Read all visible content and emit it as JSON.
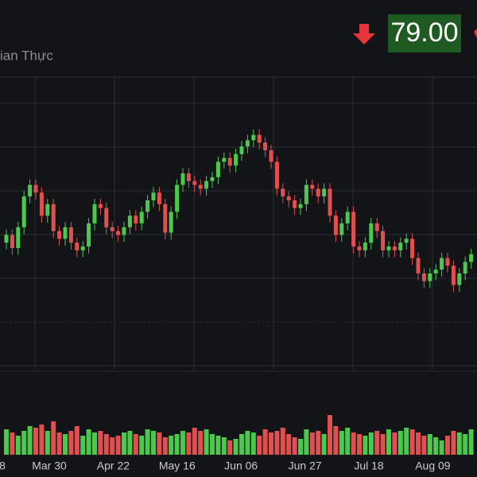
{
  "chart_data": {
    "type": "candlestick",
    "price_label": "79.00",
    "subtitle": "ian Thực",
    "x_labels": [
      "8",
      "Mar 30",
      "Apr 22",
      "May 16",
      "Jun 06",
      "Jun 27",
      "Jul 18",
      "Aug 09"
    ],
    "open": [
      80.5,
      81.5,
      79.8,
      82.5,
      86.5,
      88.0,
      87.0,
      84.0,
      85.5,
      82.0,
      81.0,
      82.5,
      80.5,
      79.5,
      80.0,
      83.0,
      85.5,
      85.0,
      82.5,
      82.0,
      81.5,
      82.5,
      84.0,
      83.0,
      84.5,
      86.0,
      87.0,
      85.5,
      81.8,
      84.5,
      88.0,
      89.5,
      88.5,
      88.0,
      87.5,
      88.5,
      89.0,
      91.0,
      91.5,
      90.5,
      92.0,
      93.0,
      93.8,
      94.5,
      93.5,
      92.5,
      91.0,
      87.5,
      86.5,
      86.0,
      85.0,
      85.5,
      88.0,
      87.5,
      86.5,
      87.5,
      84.0,
      81.5,
      83.0,
      84.5,
      80.0,
      79.5,
      80.5,
      83.0,
      82.0,
      79.5,
      80.0,
      79.5,
      80.5,
      81.0,
      78.5,
      76.5,
      75.5,
      76.5,
      77.0,
      78.5,
      77.5,
      75.0,
      76.5,
      78.0
    ],
    "high": [
      82.2,
      82.2,
      83.2,
      87.2,
      88.7,
      88.7,
      87.7,
      86.2,
      86.2,
      82.7,
      83.2,
      83.2,
      81.2,
      80.7,
      83.7,
      86.2,
      86.2,
      85.7,
      83.2,
      82.7,
      83.2,
      84.7,
      84.7,
      85.2,
      86.7,
      87.7,
      87.7,
      86.2,
      85.2,
      88.7,
      90.2,
      90.2,
      89.2,
      88.7,
      89.2,
      89.7,
      91.7,
      92.2,
      92.2,
      92.7,
      93.7,
      94.5,
      95.2,
      95.2,
      94.2,
      93.2,
      91.7,
      88.2,
      87.2,
      86.7,
      86.2,
      88.7,
      88.7,
      88.2,
      88.2,
      88.2,
      84.7,
      83.7,
      85.2,
      85.2,
      80.7,
      81.2,
      83.7,
      83.7,
      82.7,
      80.7,
      80.7,
      81.2,
      81.7,
      81.7,
      79.2,
      77.2,
      77.2,
      77.7,
      79.2,
      79.2,
      78.2,
      77.2,
      78.7,
      79.7
    ],
    "low": [
      79.6,
      78.9,
      78.9,
      81.6,
      85.6,
      86.1,
      83.1,
      83.1,
      81.1,
      80.1,
      80.1,
      79.6,
      78.6,
      78.6,
      79.1,
      82.1,
      84.1,
      81.6,
      81.1,
      80.6,
      80.6,
      81.6,
      82.1,
      82.1,
      83.6,
      85.1,
      84.6,
      80.9,
      80.9,
      83.6,
      87.1,
      87.6,
      87.1,
      86.6,
      86.6,
      87.6,
      88.1,
      90.1,
      89.6,
      89.6,
      91.1,
      92.1,
      92.9,
      92.6,
      91.6,
      90.1,
      86.6,
      85.6,
      85.1,
      84.1,
      84.1,
      84.6,
      86.6,
      85.6,
      85.6,
      83.1,
      80.6,
      80.6,
      82.1,
      79.1,
      78.6,
      78.6,
      79.6,
      81.1,
      78.6,
      78.6,
      78.6,
      78.6,
      79.6,
      77.6,
      75.6,
      74.6,
      74.6,
      75.6,
      76.1,
      76.6,
      74.1,
      74.1,
      75.6,
      77.1
    ],
    "close": [
      81.5,
      79.8,
      82.5,
      86.5,
      88.0,
      87.0,
      84.0,
      85.5,
      82.0,
      81.0,
      82.5,
      80.5,
      79.5,
      80.0,
      83.0,
      85.5,
      85.0,
      82.5,
      82.0,
      81.5,
      82.5,
      84.0,
      83.0,
      84.5,
      86.0,
      87.0,
      85.5,
      81.8,
      84.5,
      88.0,
      89.5,
      88.5,
      88.0,
      87.5,
      88.5,
      89.0,
      91.0,
      91.5,
      90.5,
      92.0,
      93.0,
      93.8,
      94.5,
      93.5,
      92.5,
      91.0,
      87.5,
      86.5,
      86.0,
      85.0,
      85.5,
      88.0,
      87.5,
      86.5,
      87.5,
      84.0,
      81.5,
      83.0,
      84.5,
      80.0,
      79.5,
      80.5,
      83.0,
      82.0,
      79.5,
      80.0,
      79.5,
      80.5,
      81.0,
      78.5,
      76.5,
      75.5,
      76.5,
      77.0,
      78.5,
      77.5,
      75.0,
      76.5,
      78.0,
      79.0
    ],
    "volume": [
      32,
      28,
      24,
      30,
      36,
      34,
      38,
      30,
      42,
      28,
      26,
      30,
      36,
      24,
      32,
      28,
      30,
      26,
      22,
      24,
      28,
      30,
      26,
      24,
      32,
      30,
      28,
      22,
      24,
      26,
      30,
      28,
      34,
      30,
      32,
      26,
      24,
      22,
      18,
      20,
      26,
      30,
      28,
      24,
      32,
      28,
      30,
      34,
      26,
      22,
      20,
      32,
      28,
      30,
      26,
      50,
      36,
      30,
      34,
      28,
      26,
      24,
      28,
      30,
      26,
      32,
      28,
      30,
      34,
      32,
      28,
      24,
      26,
      22,
      18,
      24,
      30,
      28,
      26,
      32
    ],
    "ylim": [
      64,
      102
    ],
    "volume_lim": [
      0,
      100
    ],
    "up_color": "#4cc94c",
    "down_color": "#e0504f",
    "grid": true
  }
}
